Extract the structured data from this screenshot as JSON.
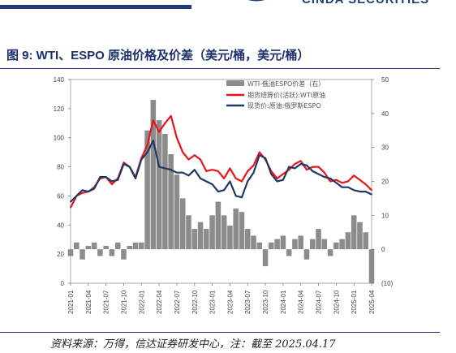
{
  "header": {
    "brand": "CINDA SECURITIES"
  },
  "figure": {
    "title": "图 9:  WTI、ESPO 原油价格及价差（美元/桶，美元/桶）",
    "source": "资料来源：万得，信达证券研发中心，注：截至 2025.04.17"
  },
  "colors": {
    "spread": "#8c8c8c",
    "wti": "#e8141b",
    "espo": "#1f3864",
    "title": "#1a2f6b"
  },
  "chart_data": {
    "type": "line",
    "title": "",
    "xlabel": "",
    "ylabel": "",
    "y_left": {
      "min": 0,
      "max": 140,
      "ticks": [
        0,
        20,
        40,
        60,
        80,
        100,
        120,
        140
      ]
    },
    "y_right": {
      "min": -10,
      "max": 50,
      "ticks": [
        -10,
        0,
        10,
        20,
        30,
        40,
        50
      ],
      "tick_labels": [
        "(10)",
        "0",
        "10",
        "20",
        "30",
        "40",
        "50"
      ]
    },
    "x_range": [
      "2021-01",
      "2025-04"
    ],
    "x_ticks": [
      "2021-01",
      "2021-04",
      "2021-07",
      "2021-10",
      "2022-01",
      "2022-04",
      "2022-07",
      "2022-10",
      "2023-01",
      "2023-04",
      "2023-07",
      "2023-10",
      "2024-01",
      "2024-04",
      "2024-07",
      "2024-10",
      "2025-01",
      "2025-04"
    ],
    "legend_position": "top-right",
    "grid": false,
    "series": [
      {
        "name": "WTI-俄油ESPO价差（右）",
        "type": "bar",
        "axis": "right",
        "x": [
          "2021-01",
          "2021-02",
          "2021-03",
          "2021-04",
          "2021-05",
          "2021-06",
          "2021-07",
          "2021-08",
          "2021-09",
          "2021-10",
          "2021-11",
          "2021-12",
          "2022-01",
          "2022-02",
          "2022-03",
          "2022-04",
          "2022-05",
          "2022-06",
          "2022-07",
          "2022-08",
          "2022-09",
          "2022-10",
          "2022-11",
          "2022-12",
          "2023-01",
          "2023-02",
          "2023-03",
          "2023-04",
          "2023-05",
          "2023-06",
          "2023-07",
          "2023-08",
          "2023-09",
          "2023-10",
          "2023-11",
          "2023-12",
          "2024-01",
          "2024-02",
          "2024-03",
          "2024-04",
          "2024-05",
          "2024-06",
          "2024-07",
          "2024-08",
          "2024-09",
          "2024-10",
          "2024-11",
          "2024-12",
          "2025-01",
          "2025-02",
          "2025-03",
          "2025-04"
        ],
        "values": [
          -2,
          2,
          -3,
          1,
          2,
          -2,
          1,
          -2,
          2,
          -3,
          1,
          2,
          2,
          35,
          44,
          38,
          34,
          28,
          22,
          15,
          10,
          6,
          8,
          6,
          10,
          14,
          10,
          7,
          12,
          11,
          6,
          4,
          2,
          -5,
          2,
          3,
          4,
          -2,
          3,
          4,
          -3,
          3,
          6,
          3,
          -2,
          2,
          3,
          5,
          10,
          8,
          5,
          -10
        ]
      },
      {
        "name": "期货结算价(活跃):WTI原油",
        "type": "line",
        "axis": "left",
        "x": [
          "2021-01",
          "2021-02",
          "2021-03",
          "2021-04",
          "2021-05",
          "2021-06",
          "2021-07",
          "2021-08",
          "2021-09",
          "2021-10",
          "2021-11",
          "2021-12",
          "2022-01",
          "2022-02",
          "2022-03",
          "2022-04",
          "2022-05",
          "2022-06",
          "2022-07",
          "2022-08",
          "2022-09",
          "2022-10",
          "2022-11",
          "2022-12",
          "2023-01",
          "2023-02",
          "2023-03",
          "2023-04",
          "2023-05",
          "2023-06",
          "2023-07",
          "2023-08",
          "2023-09",
          "2023-10",
          "2023-11",
          "2023-12",
          "2024-01",
          "2024-02",
          "2024-03",
          "2024-04",
          "2024-05",
          "2024-06",
          "2024-07",
          "2024-08",
          "2024-09",
          "2024-10",
          "2024-11",
          "2024-12",
          "2025-01",
          "2025-02",
          "2025-03",
          "2025-04"
        ],
        "values": [
          52,
          60,
          62,
          63,
          66,
          72,
          73,
          68,
          72,
          83,
          80,
          73,
          86,
          95,
          112,
          104,
          110,
          115,
          100,
          90,
          85,
          88,
          85,
          77,
          78,
          77,
          72,
          79,
          72,
          70,
          77,
          81,
          90,
          85,
          77,
          72,
          75,
          78,
          82,
          84,
          78,
          80,
          80,
          76,
          70,
          71,
          69,
          70,
          74,
          71,
          68,
          64
        ]
      },
      {
        "name": "现货价:原油:俄罗斯ESPO",
        "type": "line",
        "axis": "left",
        "x": [
          "2021-01",
          "2021-02",
          "2021-03",
          "2021-04",
          "2021-05",
          "2021-06",
          "2021-07",
          "2021-08",
          "2021-09",
          "2021-10",
          "2021-11",
          "2021-12",
          "2022-01",
          "2022-02",
          "2022-03",
          "2022-04",
          "2022-05",
          "2022-06",
          "2022-07",
          "2022-08",
          "2022-09",
          "2022-10",
          "2022-11",
          "2022-12",
          "2023-01",
          "2023-02",
          "2023-03",
          "2023-04",
          "2023-05",
          "2023-06",
          "2023-07",
          "2023-08",
          "2023-09",
          "2023-10",
          "2023-11",
          "2023-12",
          "2024-01",
          "2024-02",
          "2024-03",
          "2024-04",
          "2024-05",
          "2024-06",
          "2024-07",
          "2024-08",
          "2024-09",
          "2024-10",
          "2024-11",
          "2024-12",
          "2025-01",
          "2025-02",
          "2025-03",
          "2025-04"
        ],
        "values": [
          56,
          60,
          64,
          63,
          65,
          73,
          73,
          70,
          71,
          82,
          80,
          72,
          85,
          90,
          98,
          80,
          79,
          78,
          76,
          76,
          74,
          78,
          72,
          70,
          68,
          63,
          64,
          70,
          60,
          59,
          70,
          76,
          88,
          86,
          75,
          70,
          71,
          80,
          79,
          82,
          81,
          77,
          75,
          73,
          72,
          69,
          66,
          66,
          64,
          63,
          63,
          61
        ]
      }
    ]
  }
}
